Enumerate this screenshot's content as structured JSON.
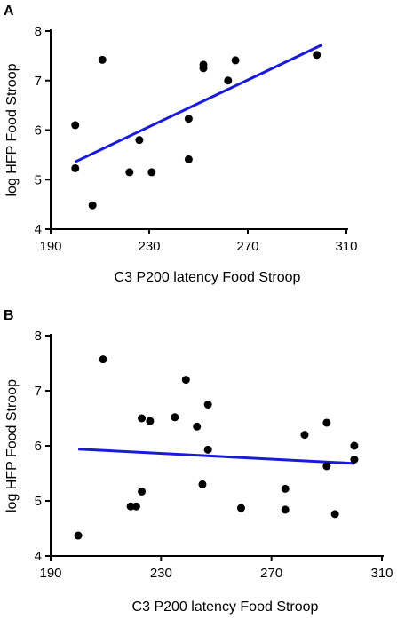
{
  "chart_data": [
    {
      "panel": "A",
      "type": "scatter",
      "xlabel": "C3 P200 latency Food Stroop",
      "ylabel": "log HFP Food Stroop",
      "xlim": [
        190,
        310
      ],
      "ylim": [
        4,
        8
      ],
      "xticks": [
        190,
        230,
        270,
        310
      ],
      "yticks": [
        4,
        5,
        6,
        7,
        8
      ],
      "grid": false,
      "points": [
        {
          "x": 200,
          "y": 6.1
        },
        {
          "x": 200,
          "y": 5.23
        },
        {
          "x": 207,
          "y": 4.48
        },
        {
          "x": 211,
          "y": 7.42
        },
        {
          "x": 222,
          "y": 5.15
        },
        {
          "x": 226,
          "y": 5.8
        },
        {
          "x": 231,
          "y": 5.15
        },
        {
          "x": 246,
          "y": 6.23
        },
        {
          "x": 246,
          "y": 5.41
        },
        {
          "x": 252,
          "y": 7.32
        },
        {
          "x": 252,
          "y": 7.25
        },
        {
          "x": 262,
          "y": 7.0
        },
        {
          "x": 265,
          "y": 7.41
        },
        {
          "x": 298,
          "y": 7.52
        }
      ],
      "fit_line": {
        "x": [
          200,
          300
        ],
        "y": [
          5.36,
          7.72
        ]
      },
      "colors": {
        "points": "#000000",
        "fit_line": "#1a1adb"
      }
    },
    {
      "panel": "B",
      "type": "scatter",
      "xlabel": "C3 P200 latency Food Stroop",
      "ylabel": "log HFP Food Stroop",
      "xlim": [
        190,
        310
      ],
      "ylim": [
        4,
        8
      ],
      "xticks": [
        190,
        230,
        270,
        310
      ],
      "yticks": [
        4,
        5,
        6,
        7,
        8
      ],
      "grid": false,
      "points": [
        {
          "x": 200,
          "y": 4.37
        },
        {
          "x": 209,
          "y": 7.57
        },
        {
          "x": 219,
          "y": 4.9
        },
        {
          "x": 221,
          "y": 4.9
        },
        {
          "x": 223,
          "y": 6.5
        },
        {
          "x": 223,
          "y": 5.17
        },
        {
          "x": 226,
          "y": 6.45
        },
        {
          "x": 235,
          "y": 6.52
        },
        {
          "x": 239,
          "y": 7.2
        },
        {
          "x": 243,
          "y": 6.35
        },
        {
          "x": 245,
          "y": 5.3
        },
        {
          "x": 247,
          "y": 6.75
        },
        {
          "x": 247,
          "y": 5.93
        },
        {
          "x": 259,
          "y": 4.87
        },
        {
          "x": 275,
          "y": 5.22
        },
        {
          "x": 275,
          "y": 4.84
        },
        {
          "x": 282,
          "y": 6.2
        },
        {
          "x": 290,
          "y": 6.42
        },
        {
          "x": 290,
          "y": 5.63
        },
        {
          "x": 293,
          "y": 4.76
        },
        {
          "x": 300,
          "y": 6.0
        },
        {
          "x": 300,
          "y": 5.75
        }
      ],
      "fit_line": {
        "x": [
          200,
          300
        ],
        "y": [
          5.94,
          5.68
        ]
      },
      "colors": {
        "points": "#000000",
        "fit_line": "#1a1adb"
      }
    }
  ]
}
